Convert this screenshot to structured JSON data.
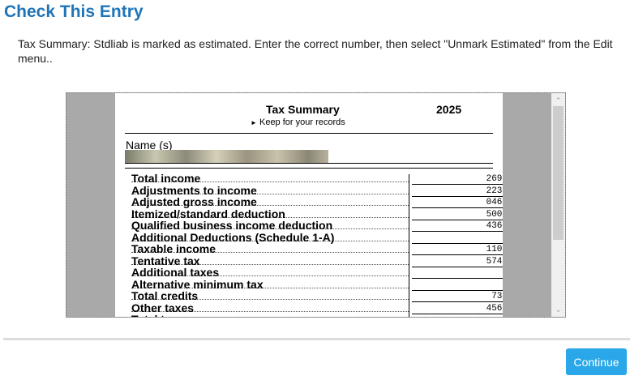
{
  "title": "Check This Entry",
  "message": "Tax Summary: Stdliab  is marked as estimated. Enter the correct number, then select \"Unmark Estimated\" from the Edit menu..",
  "form": {
    "heading": "Tax Summary",
    "year": "2025",
    "subtitle": "Keep for your records",
    "name_label": "Name (s)",
    "rows": [
      {
        "label": "Total income",
        "value": "269."
      },
      {
        "label": "Adjustments to income",
        "value": "223."
      },
      {
        "label": "Adjusted gross income",
        "value": "046."
      },
      {
        "label": "Itemized/standard deduction",
        "value": "500."
      },
      {
        "label": "Qualified business income deduction",
        "value": "436."
      },
      {
        "label": "Additional Deductions (Schedule 1-A)",
        "value": ""
      },
      {
        "label": "Taxable income",
        "value": "110."
      },
      {
        "label": "Tentative tax",
        "value": "574."
      },
      {
        "label": "Additional taxes",
        "value": ""
      },
      {
        "label": "Alternative minimum tax",
        "value": ""
      },
      {
        "label": "Total credits",
        "value": "73."
      },
      {
        "label": "Other taxes",
        "value": "456."
      },
      {
        "label": "Total tax",
        "value": ""
      }
    ]
  },
  "continue_label": "Continue"
}
